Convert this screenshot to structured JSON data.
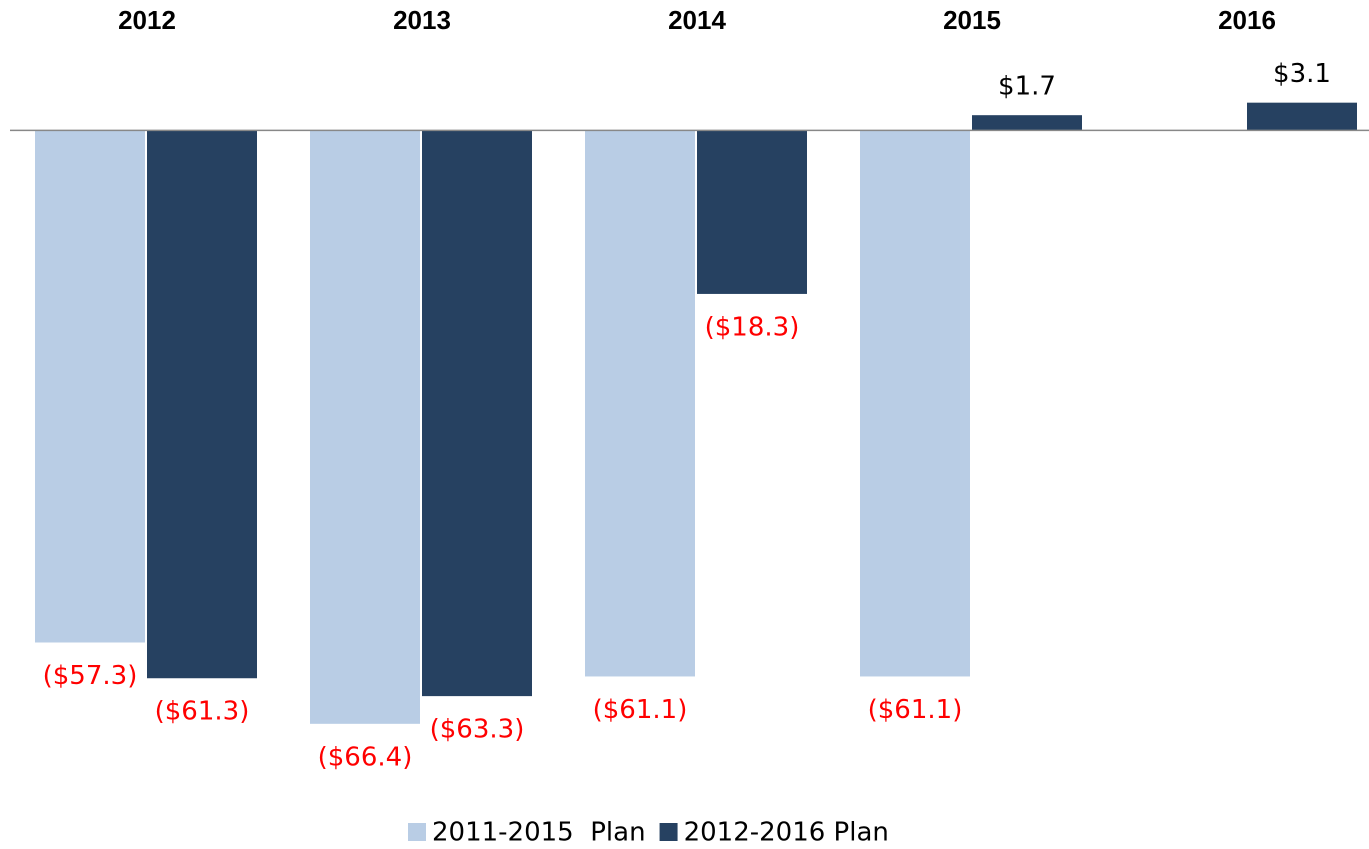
{
  "chart_data": {
    "type": "bar",
    "categories": [
      "2012",
      "2013",
      "2014",
      "2015",
      "2016"
    ],
    "series": [
      {
        "name": "2011-2015  Plan",
        "color": "#b9cde5",
        "values": [
          -57.3,
          -66.4,
          -61.1,
          -61.1,
          null
        ],
        "value_labels": [
          "($57.3)",
          "($66.4)",
          "($61.1)",
          "($61.1)",
          null
        ]
      },
      {
        "name": "2012-2016 Plan",
        "color": "#264161",
        "values": [
          -61.3,
          -63.3,
          -18.3,
          1.7,
          3.1
        ],
        "value_labels": [
          "($61.3)",
          "($63.3)",
          "($18.3)",
          "$1.7",
          "$3.1"
        ]
      }
    ],
    "ylim": [
      -70,
      10
    ]
  }
}
